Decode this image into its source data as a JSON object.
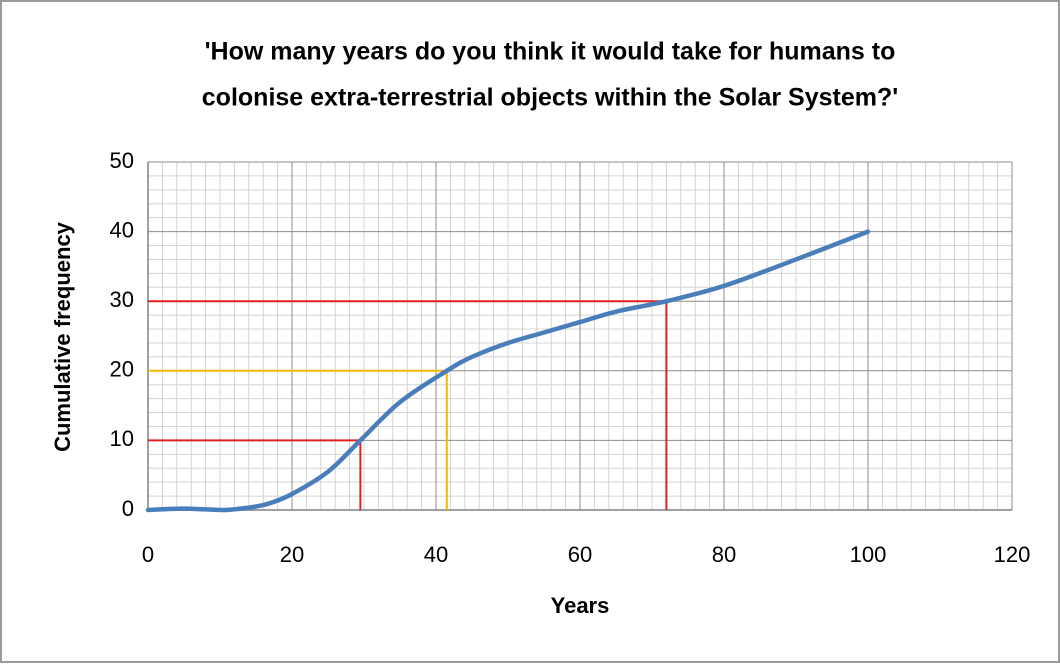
{
  "chart_data": {
    "type": "line",
    "title": [
      "'How many years do you think it would take for humans to",
      "colonise extra-terrestrial  objects within the Solar System?'"
    ],
    "x_label": "Years",
    "y_label": "Cumulative frequency",
    "xlim": [
      0,
      120
    ],
    "xticks": [
      0,
      20,
      40,
      60,
      80,
      100,
      120
    ],
    "ylim": [
      0,
      50
    ],
    "yticks": [
      0,
      10,
      20,
      30,
      40,
      50
    ],
    "grid": true,
    "x": [
      0,
      5,
      10,
      12,
      15,
      17,
      20,
      25,
      29.5,
      35,
      41.5,
      45,
      50,
      55,
      60,
      65,
      72,
      80,
      90,
      100
    ],
    "series": [
      {
        "name": "Cumulative frequency",
        "color": "#4a7ebb",
        "values": [
          0,
          0.2,
          0,
          0.1,
          0.5,
          1,
          2.3,
          5.5,
          10,
          15.5,
          20,
          22,
          24,
          25.5,
          27,
          28.5,
          30,
          32.2,
          36,
          40
        ]
      }
    ],
    "reference_lines": [
      {
        "color": "#e02020",
        "x": 29.5,
        "y": 10
      },
      {
        "color": "#f5b800",
        "x": 41.5,
        "y": 20
      },
      {
        "color": "#e02020",
        "x": 72,
        "y": 30
      }
    ]
  }
}
